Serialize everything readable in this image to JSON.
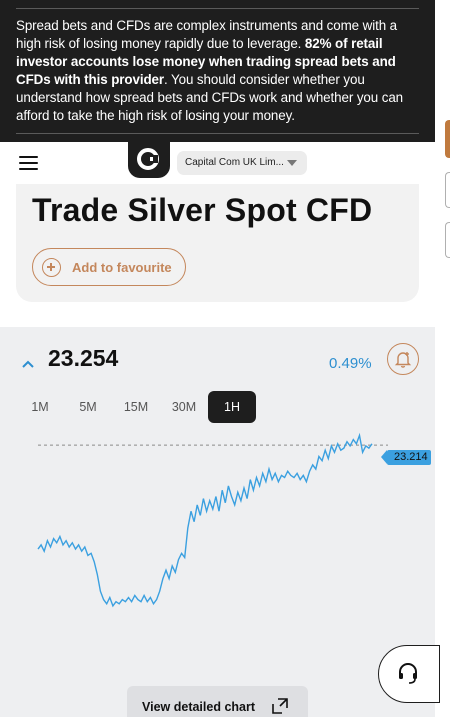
{
  "risk_banner": {
    "text_1": "Spread bets and CFDs are complex instruments and come with a high risk of losing money rapidly due to leverage. ",
    "text_bold": "82% of retail investor accounts lose money when trading spread bets and CFDs with this provider",
    "text_2": ". You should consider whether you understand how spread bets and CFDs work and whether you can afford to take the high risk of losing your money."
  },
  "header": {
    "entity_label": "Capital Com UK Lim..."
  },
  "page": {
    "title": "Trade Silver Spot CFD",
    "favourite_label": "Add to favourite"
  },
  "quote": {
    "price": "23.254",
    "change": "0.49%",
    "direction": "up"
  },
  "timeframes": [
    {
      "label": "1M",
      "active": false
    },
    {
      "label": "5M",
      "active": false
    },
    {
      "label": "15M",
      "active": false
    },
    {
      "label": "30M",
      "active": false
    },
    {
      "label": "1H",
      "active": true
    }
  ],
  "chart_data": {
    "type": "line",
    "current_price_label": "23.214",
    "reference_line": 23.214,
    "ylim": [
      22.35,
      23.3
    ],
    "grid": false,
    "series": [
      {
        "values": [
          22.72,
          22.74,
          22.71,
          22.76,
          22.73,
          22.77,
          22.75,
          22.78,
          22.74,
          22.76,
          22.73,
          22.75,
          22.72,
          22.74,
          22.71,
          22.73,
          22.69,
          22.7,
          22.66,
          22.6,
          22.52,
          22.48,
          22.46,
          22.49,
          22.45,
          22.47,
          22.46,
          22.48,
          22.47,
          22.49,
          22.47,
          22.5,
          22.48,
          22.47,
          22.5,
          22.47,
          22.49,
          22.46,
          22.48,
          22.52,
          22.58,
          22.62,
          22.58,
          22.64,
          22.61,
          22.67,
          22.7,
          22.68,
          22.82,
          22.9,
          22.85,
          22.93,
          22.88,
          22.96,
          22.9,
          22.95,
          22.91,
          22.97,
          22.9,
          23.0,
          22.94,
          23.02,
          22.97,
          22.93,
          22.99,
          22.95,
          23.01,
          22.96,
          23.05,
          23.0,
          23.06,
          23.02,
          23.08,
          23.04,
          23.1,
          23.05,
          23.08,
          23.04,
          23.07,
          23.06,
          23.09,
          23.07,
          23.06,
          23.08,
          23.05,
          23.07,
          23.04,
          23.09,
          23.12,
          23.1,
          23.16,
          23.14,
          23.19,
          23.15,
          23.21,
          23.18,
          23.22,
          23.19,
          23.2,
          23.23,
          23.21,
          23.24,
          23.22,
          23.26,
          23.18,
          23.21,
          23.2,
          23.22
        ]
      }
    ],
    "line_color": "#3ba0e0"
  },
  "detail_button_label": "View detailed chart"
}
